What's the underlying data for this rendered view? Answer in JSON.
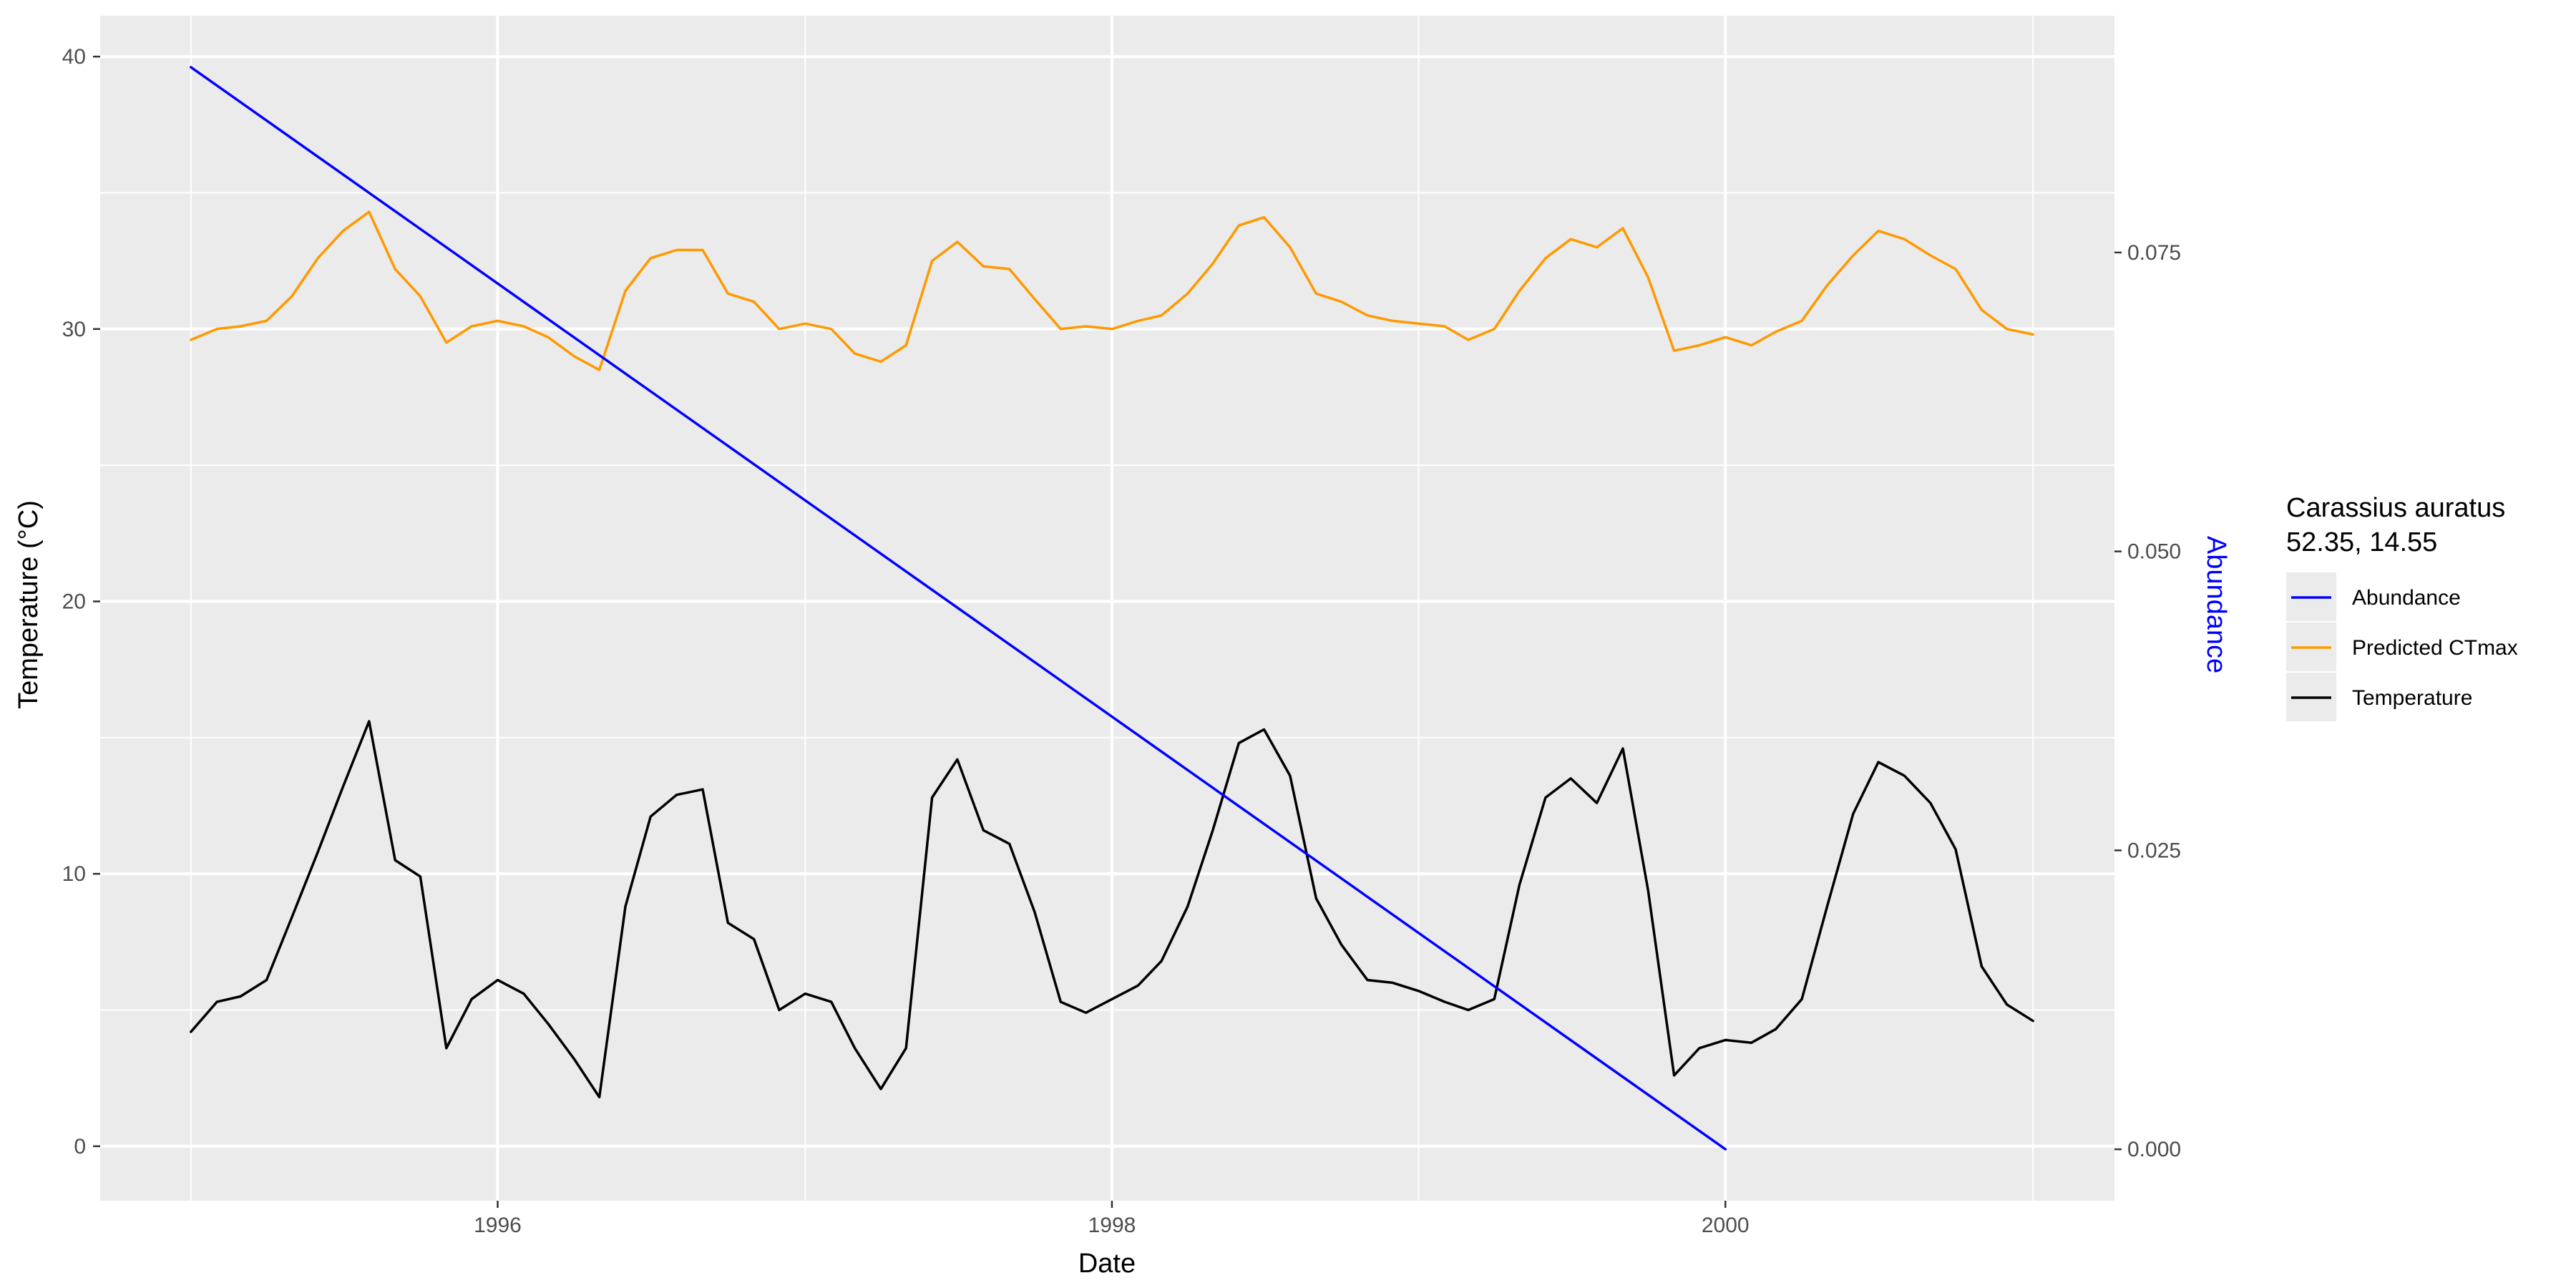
{
  "chart_data": {
    "type": "line",
    "xlabel": "Date",
    "ylabel": "Temperature (°C)",
    "y2label": "Abundance",
    "xlim": [
      "1994-09-15",
      "2001-04-08"
    ],
    "ylim": [
      -2,
      41.5
    ],
    "y2lim": [
      -0.0043,
      0.0948
    ],
    "x_ticks": [
      {
        "date": "1996-01-01",
        "label": "1996"
      },
      {
        "date": "1998-01-01",
        "label": "1998"
      },
      {
        "date": "2000-01-01",
        "label": "2000"
      }
    ],
    "x_minor_ticks": [
      "1995-01-01",
      "1997-01-01",
      "1999-01-01",
      "2001-01-01"
    ],
    "y_ticks": [
      0,
      10,
      20,
      30,
      40
    ],
    "y_tick_labels": [
      "0",
      "10",
      "20",
      "30",
      "40"
    ],
    "y_minor_ticks": [
      5,
      15,
      25,
      35
    ],
    "y2_ticks": [
      0,
      0.025,
      0.05,
      0.075
    ],
    "y2_tick_labels": [
      "0.000",
      "0.025",
      "0.050",
      "0.075"
    ],
    "grid": true,
    "panel_background": "#ebebeb",
    "legend": {
      "position": "right",
      "title_lines": [
        "Carassius auratus",
        "52.35, 14.55"
      ]
    },
    "series": [
      {
        "name": "Abundance",
        "axis": "right",
        "color": "#0000ff",
        "points": [
          [
            "1995-01-01",
            0.0905
          ],
          [
            "2000-01-01",
            0.0
          ]
        ]
      },
      {
        "name": "Predicted CTmax",
        "axis": "left",
        "color": "#ff9900",
        "points": [
          [
            "1995-01-01",
            29.6
          ],
          [
            "1995-02-01",
            30.0
          ],
          [
            "1995-03-01",
            30.1
          ],
          [
            "1995-04-01",
            30.3
          ],
          [
            "1995-05-01",
            31.2
          ],
          [
            "1995-06-01",
            32.6
          ],
          [
            "1995-07-01",
            33.6
          ],
          [
            "1995-08-01",
            34.3
          ],
          [
            "1995-09-01",
            32.2
          ],
          [
            "1995-10-01",
            31.2
          ],
          [
            "1995-11-01",
            29.5
          ],
          [
            "1995-12-01",
            30.1
          ],
          [
            "1996-01-01",
            30.3
          ],
          [
            "1996-02-01",
            30.1
          ],
          [
            "1996-03-01",
            29.7
          ],
          [
            "1996-04-01",
            29.0
          ],
          [
            "1996-05-01",
            28.5
          ],
          [
            "1996-06-01",
            31.4
          ],
          [
            "1996-07-01",
            32.6
          ],
          [
            "1996-08-01",
            32.9
          ],
          [
            "1996-09-01",
            32.9
          ],
          [
            "1996-10-01",
            31.3
          ],
          [
            "1996-11-01",
            31.0
          ],
          [
            "1996-12-01",
            30.0
          ],
          [
            "1997-01-01",
            30.2
          ],
          [
            "1997-02-01",
            30.0
          ],
          [
            "1997-03-01",
            29.1
          ],
          [
            "1997-04-01",
            28.8
          ],
          [
            "1997-05-01",
            29.4
          ],
          [
            "1997-06-01",
            32.5
          ],
          [
            "1997-07-01",
            33.2
          ],
          [
            "1997-08-01",
            32.3
          ],
          [
            "1997-09-01",
            32.2
          ],
          [
            "1997-10-01",
            31.1
          ],
          [
            "1997-11-01",
            30.0
          ],
          [
            "1997-12-01",
            30.1
          ],
          [
            "1998-01-01",
            30.0
          ],
          [
            "1998-02-01",
            30.3
          ],
          [
            "1998-03-01",
            30.5
          ],
          [
            "1998-04-01",
            31.3
          ],
          [
            "1998-05-01",
            32.4
          ],
          [
            "1998-06-01",
            33.8
          ],
          [
            "1998-07-01",
            34.1
          ],
          [
            "1998-08-01",
            33.0
          ],
          [
            "1998-09-01",
            31.3
          ],
          [
            "1998-10-01",
            31.0
          ],
          [
            "1998-11-01",
            30.5
          ],
          [
            "1998-12-01",
            30.3
          ],
          [
            "1999-01-01",
            30.2
          ],
          [
            "1999-02-01",
            30.1
          ],
          [
            "1999-03-01",
            29.6
          ],
          [
            "1999-04-01",
            30.0
          ],
          [
            "1999-05-01",
            31.4
          ],
          [
            "1999-06-01",
            32.6
          ],
          [
            "1999-07-01",
            33.3
          ],
          [
            "1999-08-01",
            33.0
          ],
          [
            "1999-09-01",
            33.7
          ],
          [
            "1999-10-01",
            31.9
          ],
          [
            "1999-11-01",
            29.2
          ],
          [
            "1999-12-01",
            29.4
          ],
          [
            "2000-01-01",
            29.7
          ],
          [
            "2000-02-01",
            29.4
          ],
          [
            "2000-03-01",
            29.9
          ],
          [
            "2000-04-01",
            30.3
          ],
          [
            "2000-05-01",
            31.6
          ],
          [
            "2000-06-01",
            32.7
          ],
          [
            "2000-07-01",
            33.6
          ],
          [
            "2000-08-01",
            33.3
          ],
          [
            "2000-09-01",
            32.7
          ],
          [
            "2000-10-01",
            32.2
          ],
          [
            "2000-11-01",
            30.7
          ],
          [
            "2000-12-01",
            30.0
          ],
          [
            "2001-01-01",
            29.8
          ]
        ]
      },
      {
        "name": "Temperature",
        "axis": "left",
        "color": "#000000",
        "points": [
          [
            "1995-01-01",
            4.2
          ],
          [
            "1995-02-01",
            5.3
          ],
          [
            "1995-03-01",
            5.5
          ],
          [
            "1995-04-01",
            6.1
          ],
          [
            "1995-05-01",
            8.4
          ],
          [
            "1995-06-01",
            10.8
          ],
          [
            "1995-07-01",
            13.2
          ],
          [
            "1995-08-01",
            15.6
          ],
          [
            "1995-09-01",
            10.5
          ],
          [
            "1995-10-01",
            9.9
          ],
          [
            "1995-11-01",
            3.6
          ],
          [
            "1995-12-01",
            5.4
          ],
          [
            "1996-01-01",
            6.1
          ],
          [
            "1996-02-01",
            5.6
          ],
          [
            "1996-03-01",
            4.5
          ],
          [
            "1996-04-01",
            3.2
          ],
          [
            "1996-05-01",
            1.8
          ],
          [
            "1996-06-01",
            8.8
          ],
          [
            "1996-07-01",
            12.1
          ],
          [
            "1996-08-01",
            12.9
          ],
          [
            "1996-09-01",
            13.1
          ],
          [
            "1996-10-01",
            8.2
          ],
          [
            "1996-11-01",
            7.6
          ],
          [
            "1996-12-01",
            5.0
          ],
          [
            "1997-01-01",
            5.6
          ],
          [
            "1997-02-01",
            5.3
          ],
          [
            "1997-03-01",
            3.6
          ],
          [
            "1997-04-01",
            2.1
          ],
          [
            "1997-05-01",
            3.6
          ],
          [
            "1997-06-01",
            12.8
          ],
          [
            "1997-07-01",
            14.2
          ],
          [
            "1997-08-01",
            11.6
          ],
          [
            "1997-09-01",
            11.1
          ],
          [
            "1997-10-01",
            8.6
          ],
          [
            "1997-11-01",
            5.3
          ],
          [
            "1997-12-01",
            4.9
          ],
          [
            "1998-01-01",
            5.4
          ],
          [
            "1998-02-01",
            5.9
          ],
          [
            "1998-03-01",
            6.8
          ],
          [
            "1998-04-01",
            8.8
          ],
          [
            "1998-05-01",
            11.6
          ],
          [
            "1998-06-01",
            14.8
          ],
          [
            "1998-07-01",
            15.3
          ],
          [
            "1998-08-01",
            13.6
          ],
          [
            "1998-09-01",
            9.1
          ],
          [
            "1998-10-01",
            7.4
          ],
          [
            "1998-11-01",
            6.1
          ],
          [
            "1998-12-01",
            6.0
          ],
          [
            "1999-01-01",
            5.7
          ],
          [
            "1999-02-01",
            5.3
          ],
          [
            "1999-03-01",
            5.0
          ],
          [
            "1999-04-01",
            5.4
          ],
          [
            "1999-05-01",
            9.6
          ],
          [
            "1999-06-01",
            12.8
          ],
          [
            "1999-07-01",
            13.5
          ],
          [
            "1999-08-01",
            12.6
          ],
          [
            "1999-09-01",
            14.6
          ],
          [
            "1999-10-01",
            9.4
          ],
          [
            "1999-11-01",
            2.6
          ],
          [
            "1999-12-01",
            3.6
          ],
          [
            "2000-01-01",
            3.9
          ],
          [
            "2000-02-01",
            3.8
          ],
          [
            "2000-03-01",
            4.3
          ],
          [
            "2000-04-01",
            5.4
          ],
          [
            "2000-05-01",
            8.8
          ],
          [
            "2000-06-01",
            12.2
          ],
          [
            "2000-07-01",
            14.1
          ],
          [
            "2000-08-01",
            13.6
          ],
          [
            "2000-09-01",
            12.6
          ],
          [
            "2000-10-01",
            10.9
          ],
          [
            "2000-11-01",
            6.6
          ],
          [
            "2000-12-01",
            5.2
          ],
          [
            "2001-01-01",
            4.6
          ]
        ]
      }
    ]
  }
}
